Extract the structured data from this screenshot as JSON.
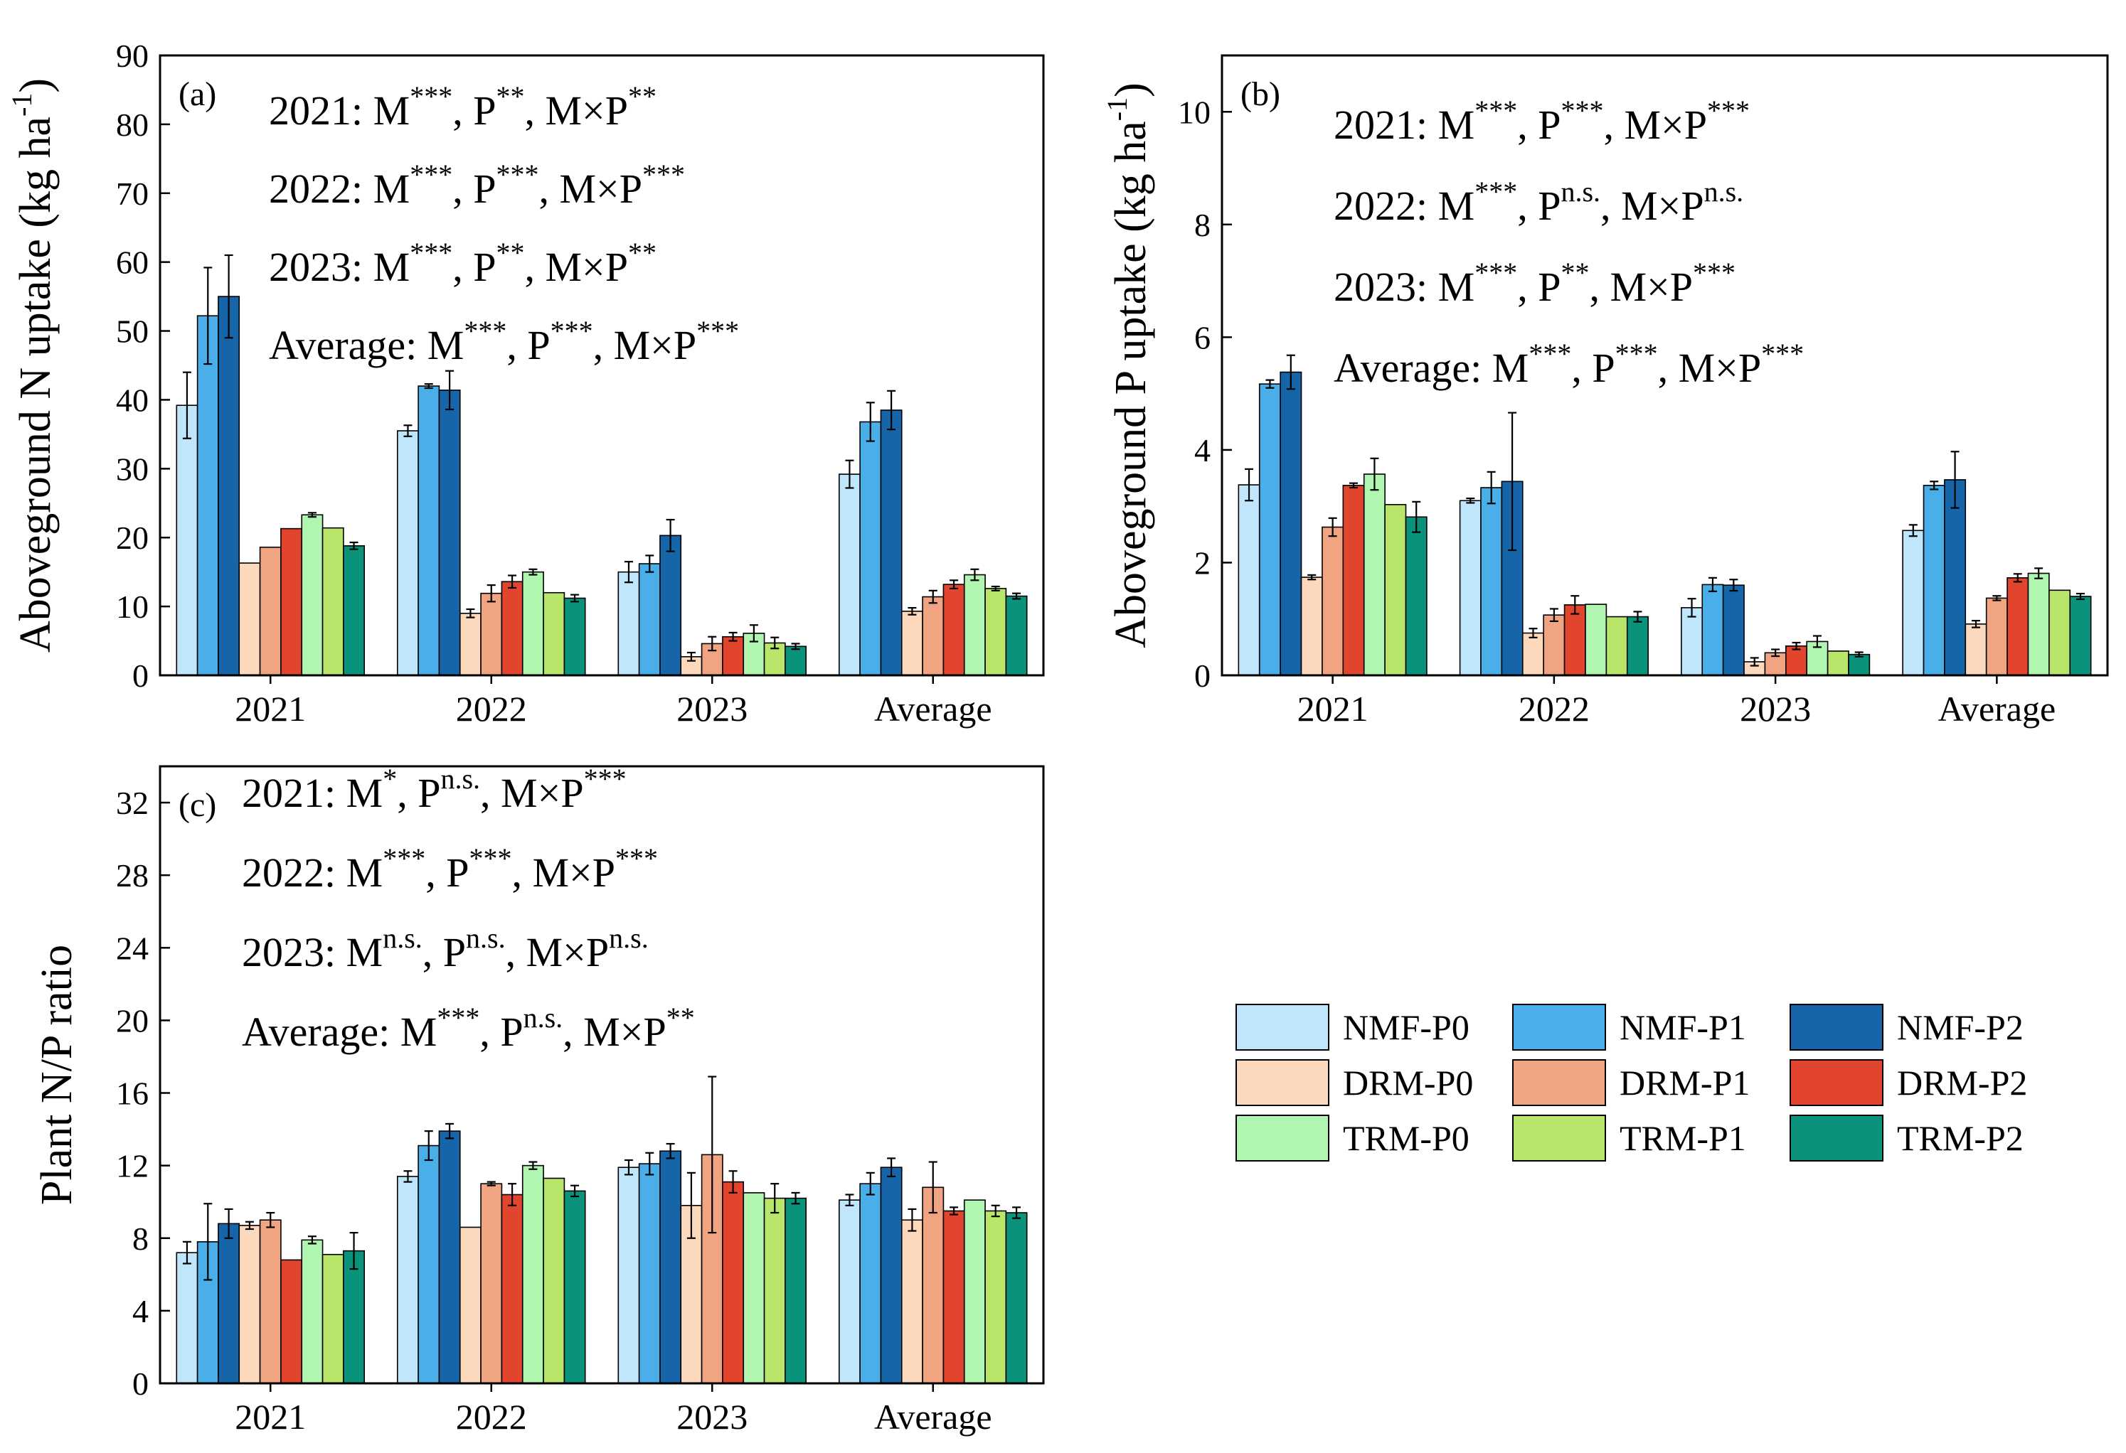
{
  "legend": [
    {
      "key": "NMF-P0",
      "label": "NMF-P0",
      "color": "#bfe6fb"
    },
    {
      "key": "NMF-P1",
      "label": "NMF-P1",
      "color": "#4aaee8"
    },
    {
      "key": "NMF-P2",
      "label": "NMF-P2",
      "color": "#1565a8"
    },
    {
      "key": "DRM-P0",
      "label": "DRM-P0",
      "color": "#fcd9bd"
    },
    {
      "key": "DRM-P1",
      "label": "DRM-P1",
      "color": "#f1a482"
    },
    {
      "key": "DRM-P2",
      "label": "DRM-P2",
      "color": "#e2452e"
    },
    {
      "key": "TRM-P0",
      "label": "TRM-P0",
      "color": "#b1f6b0"
    },
    {
      "key": "TRM-P1",
      "label": "TRM-P1",
      "color": "#b8e56a"
    },
    {
      "key": "TRM-P2",
      "label": "TRM-P2",
      "color": "#0b927a"
    }
  ],
  "chart_data": [
    {
      "id": "a",
      "type": "bar",
      "panel_label": "(a)",
      "ylabel": "Aboveground N uptake (kg ha",
      "ylabel_sup": "-1",
      "ylabel_close": ")",
      "ylim": [
        0,
        90
      ],
      "yticks": [
        "0",
        "10",
        "20",
        "30",
        "40",
        "50",
        "60",
        "70",
        "80",
        "90"
      ],
      "categories": [
        "2021",
        "2022",
        "2023",
        "Average"
      ],
      "series": [
        {
          "name": "NMF-P0",
          "values": [
            39.2,
            35.5,
            15.0,
            29.2
          ],
          "errors": [
            4.8,
            0.8,
            1.5,
            2.0
          ]
        },
        {
          "name": "NMF-P1",
          "values": [
            52.2,
            42.0,
            16.2,
            36.8
          ],
          "errors": [
            7.0,
            0.3,
            1.2,
            2.8
          ]
        },
        {
          "name": "NMF-P2",
          "values": [
            55.0,
            41.4,
            20.3,
            38.5
          ],
          "errors": [
            6.0,
            2.8,
            2.3,
            2.8
          ]
        },
        {
          "name": "DRM-P0",
          "values": [
            16.3,
            9.0,
            2.7,
            9.3
          ],
          "errors": [
            0,
            0.6,
            0.6,
            0.5
          ]
        },
        {
          "name": "DRM-P1",
          "values": [
            18.6,
            11.9,
            4.6,
            11.4
          ],
          "errors": [
            0,
            1.2,
            1.0,
            0.9
          ]
        },
        {
          "name": "DRM-P2",
          "values": [
            21.3,
            13.6,
            5.6,
            13.2
          ],
          "errors": [
            0,
            0.9,
            0.6,
            0.6
          ]
        },
        {
          "name": "TRM-P0",
          "values": [
            23.3,
            15.0,
            6.1,
            14.6
          ],
          "errors": [
            0.3,
            0.4,
            1.2,
            0.8
          ]
        },
        {
          "name": "TRM-P1",
          "values": [
            21.4,
            12.0,
            4.7,
            12.6
          ],
          "errors": [
            0,
            0,
            0.8,
            0.3
          ]
        },
        {
          "name": "TRM-P2",
          "values": [
            18.8,
            11.2,
            4.2,
            11.5
          ],
          "errors": [
            0.5,
            0.5,
            0.4,
            0.4
          ]
        }
      ],
      "annotations": [
        [
          {
            "t": "2021: M"
          },
          {
            "t": "***",
            "sup": true
          },
          {
            "t": ", P"
          },
          {
            "t": "**",
            "sup": true
          },
          {
            "t": ", M×P"
          },
          {
            "t": "**",
            "sup": true
          }
        ],
        [
          {
            "t": "2022: M"
          },
          {
            "t": "***",
            "sup": true
          },
          {
            "t": ", P"
          },
          {
            "t": "***",
            "sup": true
          },
          {
            "t": ", M×P"
          },
          {
            "t": "***",
            "sup": true
          }
        ],
        [
          {
            "t": "2023: M"
          },
          {
            "t": "***",
            "sup": true
          },
          {
            "t": ", P"
          },
          {
            "t": "**",
            "sup": true
          },
          {
            "t": ", M×P"
          },
          {
            "t": "**",
            "sup": true
          }
        ],
        [
          {
            "t": "Average: M"
          },
          {
            "t": "***",
            "sup": true
          },
          {
            "t": ", P"
          },
          {
            "t": "***",
            "sup": true
          },
          {
            "t": ", M×P"
          },
          {
            "t": "***",
            "sup": true
          }
        ]
      ]
    },
    {
      "id": "b",
      "type": "bar",
      "panel_label": "(b)",
      "ylabel": "Aboveground P uptake (kg ha",
      "ylabel_sup": "-1",
      "ylabel_close": ")",
      "ylim": [
        0,
        11
      ],
      "yticks": [
        "0",
        "2",
        "4",
        "6",
        "8",
        "10"
      ],
      "categories": [
        "2021",
        "2022",
        "2023",
        "Average"
      ],
      "series": [
        {
          "name": "NMF-P0",
          "values": [
            3.38,
            3.1,
            1.2,
            2.57
          ],
          "errors": [
            0.28,
            0.04,
            0.16,
            0.1
          ]
        },
        {
          "name": "NMF-P1",
          "values": [
            5.17,
            3.33,
            1.61,
            3.37
          ],
          "errors": [
            0.07,
            0.28,
            0.12,
            0.07
          ]
        },
        {
          "name": "NMF-P2",
          "values": [
            5.38,
            3.44,
            1.6,
            3.47
          ],
          "errors": [
            0.3,
            1.22,
            0.1,
            0.5
          ]
        },
        {
          "name": "DRM-P0",
          "values": [
            1.74,
            0.75,
            0.24,
            0.91
          ],
          "errors": [
            0.04,
            0.08,
            0.07,
            0.06
          ]
        },
        {
          "name": "DRM-P1",
          "values": [
            2.63,
            1.07,
            0.4,
            1.37
          ],
          "errors": [
            0.16,
            0.11,
            0.06,
            0.04
          ]
        },
        {
          "name": "DRM-P2",
          "values": [
            3.37,
            1.25,
            0.52,
            1.73
          ],
          "errors": [
            0.04,
            0.16,
            0.06,
            0.07
          ]
        },
        {
          "name": "TRM-P0",
          "values": [
            3.57,
            1.26,
            0.6,
            1.81
          ],
          "errors": [
            0.28,
            0,
            0.1,
            0.09
          ]
        },
        {
          "name": "TRM-P1",
          "values": [
            3.03,
            1.04,
            0.43,
            1.51
          ],
          "errors": [
            0,
            0,
            0,
            0
          ]
        },
        {
          "name": "TRM-P2",
          "values": [
            2.81,
            1.04,
            0.37,
            1.4
          ],
          "errors": [
            0.27,
            0.09,
            0.04,
            0.05
          ]
        }
      ],
      "annotations": [
        [
          {
            "t": "2021: M"
          },
          {
            "t": "***",
            "sup": true
          },
          {
            "t": ", P"
          },
          {
            "t": "***",
            "sup": true
          },
          {
            "t": ", M×P"
          },
          {
            "t": "***",
            "sup": true
          }
        ],
        [
          {
            "t": "2022: M"
          },
          {
            "t": "***",
            "sup": true
          },
          {
            "t": ", P"
          },
          {
            "t": "n.s.",
            "sup": true
          },
          {
            "t": ", M×P"
          },
          {
            "t": "n.s.",
            "sup": true
          }
        ],
        [
          {
            "t": "2023: M"
          },
          {
            "t": "***",
            "sup": true
          },
          {
            "t": ", P"
          },
          {
            "t": "**",
            "sup": true
          },
          {
            "t": ", M×P"
          },
          {
            "t": "***",
            "sup": true
          }
        ],
        [
          {
            "t": "Average: M"
          },
          {
            "t": "***",
            "sup": true
          },
          {
            "t": ", P"
          },
          {
            "t": "***",
            "sup": true
          },
          {
            "t": ", M×P"
          },
          {
            "t": "***",
            "sup": true
          }
        ]
      ]
    },
    {
      "id": "c",
      "type": "bar",
      "panel_label": "(c)",
      "ylabel": "Plant N/P ratio",
      "ylabel_sup": "",
      "ylabel_close": "",
      "ylim": [
        0,
        34
      ],
      "yticks": [
        "0",
        "4",
        "8",
        "12",
        "16",
        "20",
        "24",
        "28",
        "32"
      ],
      "categories": [
        "2021",
        "2022",
        "2023",
        "Average"
      ],
      "series": [
        {
          "name": "NMF-P0",
          "values": [
            7.2,
            11.4,
            11.9,
            10.1
          ],
          "errors": [
            0.6,
            0.3,
            0.4,
            0.3
          ]
        },
        {
          "name": "NMF-P1",
          "values": [
            7.8,
            13.1,
            12.1,
            11.0
          ],
          "errors": [
            2.1,
            0.8,
            0.6,
            0.6
          ]
        },
        {
          "name": "NMF-P2",
          "values": [
            8.8,
            13.9,
            12.8,
            11.9
          ],
          "errors": [
            0.8,
            0.4,
            0.4,
            0.5
          ]
        },
        {
          "name": "DRM-P0",
          "values": [
            8.7,
            8.6,
            9.8,
            9.0
          ],
          "errors": [
            0.2,
            0,
            1.8,
            0.6
          ]
        },
        {
          "name": "DRM-P1",
          "values": [
            9.0,
            11.0,
            12.6,
            10.8
          ],
          "errors": [
            0.4,
            0.1,
            4.3,
            1.4
          ]
        },
        {
          "name": "DRM-P2",
          "values": [
            6.8,
            10.4,
            11.1,
            9.5
          ],
          "errors": [
            0,
            0.6,
            0.6,
            0.2
          ]
        },
        {
          "name": "TRM-P0",
          "values": [
            7.9,
            12.0,
            10.5,
            10.1
          ],
          "errors": [
            0.2,
            0.2,
            0,
            0
          ]
        },
        {
          "name": "TRM-P1",
          "values": [
            7.1,
            11.3,
            10.2,
            9.5
          ],
          "errors": [
            0,
            0,
            0.8,
            0.3
          ]
        },
        {
          "name": "TRM-P2",
          "values": [
            7.3,
            10.6,
            10.2,
            9.4
          ],
          "errors": [
            1.0,
            0.3,
            0.3,
            0.3
          ]
        }
      ],
      "annotations": [
        [
          {
            "t": "2021: M"
          },
          {
            "t": "*",
            "sup": true
          },
          {
            "t": ", P"
          },
          {
            "t": "n.s.",
            "sup": true
          },
          {
            "t": ", M×P"
          },
          {
            "t": "***",
            "sup": true
          }
        ],
        [
          {
            "t": "2022: M"
          },
          {
            "t": "***",
            "sup": true
          },
          {
            "t": ", P"
          },
          {
            "t": "***",
            "sup": true
          },
          {
            "t": ", M×P"
          },
          {
            "t": "***",
            "sup": true
          }
        ],
        [
          {
            "t": "2023: M"
          },
          {
            "t": "n.s.",
            "sup": true
          },
          {
            "t": ", P"
          },
          {
            "t": "n.s.",
            "sup": true
          },
          {
            "t": ", M×P"
          },
          {
            "t": "n.s.",
            "sup": true
          }
        ],
        [
          {
            "t": "Average: M"
          },
          {
            "t": "***",
            "sup": true
          },
          {
            "t": ", P"
          },
          {
            "t": "n.s.",
            "sup": true
          },
          {
            "t": ", M×P"
          },
          {
            "t": "**",
            "sup": true
          }
        ]
      ]
    }
  ]
}
